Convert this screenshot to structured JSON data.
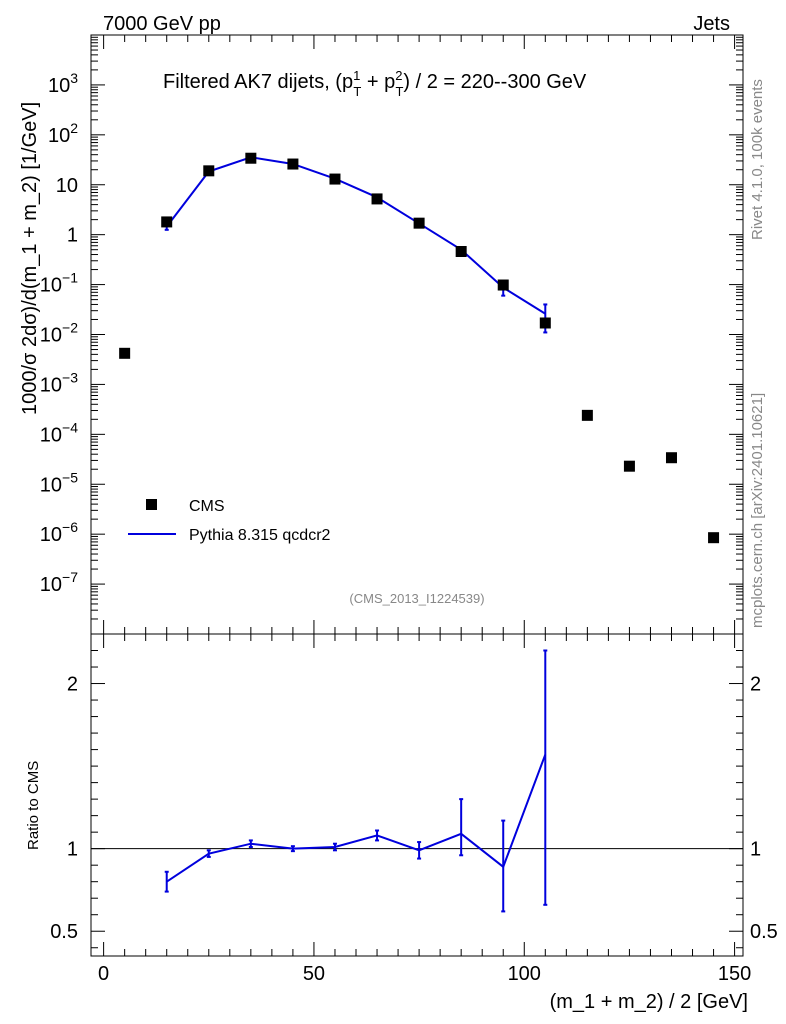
{
  "header": {
    "left": "7000 GeV pp",
    "right": "Jets"
  },
  "side": {
    "rivet": "Rivet 4.1.0,  100k events",
    "mcplots": "mcplots.cern.ch [arXiv:2401.10621]"
  },
  "chart_data": {
    "type": "scatter",
    "title_main": "Filtered AK7 dijets, (p",
    "title_sup1": "1",
    "title_sub1": "T",
    "title_plus": " + p",
    "title_sup2": "2",
    "title_sub2": "T",
    "title_end": ") / 2 = 220--300 GeV",
    "ylabel": "1000/σ  2dσ)/d(m_1 + m_2) [1/GeV]",
    "ylabel_ratio": "Ratio to CMS",
    "xlabel": "(m_1 + m_2) / 2 [GeV]",
    "analysis_id": "(CMS_2013_I1224539)",
    "xlim": [
      -3,
      152
    ],
    "ylim_log": [
      1e-08,
      10000
    ],
    "ratio_ylim": [
      0.35,
      2.3
    ],
    "x_ticks": [
      0,
      50,
      100,
      150
    ],
    "x_tick_labels": [
      "0",
      "50",
      "100",
      "150"
    ],
    "y_tick_labels": [
      {
        "base": "10",
        "exp": "3",
        "value": 1000
      },
      {
        "base": "10",
        "exp": "2",
        "value": 100
      },
      {
        "base": "10",
        "exp": "",
        "value": 10
      },
      {
        "base": "1",
        "exp": "",
        "value": 1
      },
      {
        "base": "10",
        "exp": "−1",
        "value": 0.1
      },
      {
        "base": "10",
        "exp": "−2",
        "value": 0.01
      },
      {
        "base": "10",
        "exp": "−3",
        "value": 0.001
      },
      {
        "base": "10",
        "exp": "−4",
        "value": 0.0001
      },
      {
        "base": "10",
        "exp": "−5",
        "value": 1e-05
      },
      {
        "base": "10",
        "exp": "−6",
        "value": 1e-06
      },
      {
        "base": "10",
        "exp": "−7",
        "value": 1e-07
      }
    ],
    "ratio_tick_labels": [
      {
        "label": "2",
        "value": 2
      },
      {
        "label": "1",
        "value": 1
      },
      {
        "label": "0.5",
        "value": 0.5
      }
    ],
    "legend": [
      {
        "name": "CMS",
        "style": "square-marker"
      },
      {
        "name": "Pythia 8.315 qcdcr2",
        "style": "line"
      }
    ],
    "series": [
      {
        "name": "CMS",
        "color": "#000000",
        "x": [
          5,
          15,
          25,
          35,
          45,
          55,
          65,
          75,
          85,
          95,
          105,
          115,
          125,
          135,
          145
        ],
        "y": [
          0.0042,
          1.8,
          19,
          34,
          26,
          13,
          5.2,
          1.7,
          0.46,
          0.098,
          0.017,
          0.00024,
          2.3e-05,
          3.4e-05,
          8.5e-07
        ]
      },
      {
        "name": "Pythia 8.315 qcdcr2",
        "color": "#0000dd",
        "x": [
          15,
          25,
          35,
          45,
          55,
          65,
          75,
          85,
          95,
          105
        ],
        "y": [
          1.45,
          18.4,
          35.5,
          26.1,
          13.2,
          5.6,
          1.68,
          0.5,
          0.087,
          0.026
        ],
        "y_lo": [
          1.25,
          17.6,
          34.5,
          25.4,
          12.8,
          5.4,
          1.6,
          0.46,
          0.06,
          0.011
        ],
        "y_hi": [
          1.65,
          19.2,
          36.5,
          26.8,
          13.6,
          5.8,
          1.76,
          0.54,
          0.11,
          0.04
        ]
      }
    ],
    "ratio": {
      "name": "Pythia 8.315 qcdcr2 / CMS",
      "x": [
        15,
        25,
        35,
        45,
        55,
        65,
        75,
        85,
        95,
        105
      ],
      "y": [
        0.8,
        0.97,
        1.03,
        1.0,
        1.01,
        1.08,
        0.99,
        1.09,
        0.89,
        1.57
      ],
      "y_lo": [
        0.74,
        0.95,
        1.01,
        0.985,
        0.99,
        1.05,
        0.94,
        0.96,
        0.62,
        0.66
      ],
      "y_hi": [
        0.86,
        0.99,
        1.05,
        1.015,
        1.03,
        1.11,
        1.04,
        1.3,
        1.17,
        2.2
      ]
    }
  }
}
